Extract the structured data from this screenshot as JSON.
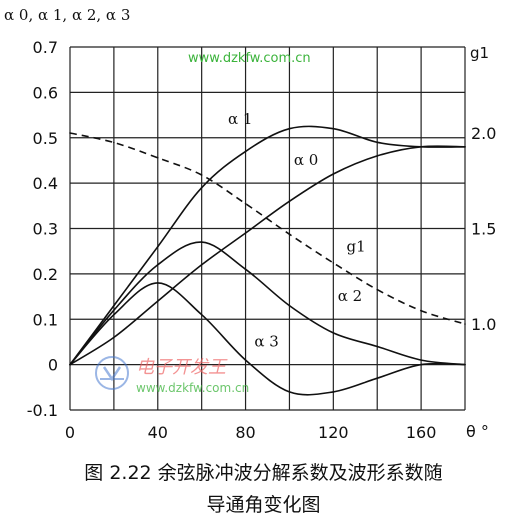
{
  "chart_data": {
    "type": "line",
    "title": "图 2.22 余弦脉冲波分解系数及波形系数随导通角变化图",
    "caption_line1": "图 2.22 余弦脉冲波分解系数及波形系数随",
    "caption_line2": "导通角变化图",
    "xlabel": "θ °",
    "ylabel_left": "α 0, α 1, α 2, α 3",
    "ylabel_right": "g1",
    "xlim": [
      0,
      180
    ],
    "ylim_left": [
      -0.1,
      0.7
    ],
    "ylim_right": [
      0.55,
      2.45
    ],
    "x_ticks": [
      "0",
      "40",
      "80",
      "120",
      "160"
    ],
    "x_tick_values": [
      0,
      40,
      80,
      120,
      160
    ],
    "y_ticks_left": [
      "-0.1",
      "0",
      "0.1",
      "0.2",
      "0.3",
      "0.4",
      "0.5",
      "0.6",
      "0.7"
    ],
    "y_tick_values_left": [
      -0.1,
      0,
      0.1,
      0.2,
      0.3,
      0.4,
      0.5,
      0.6,
      0.7
    ],
    "y_ticks_right": [
      "1.0",
      "1.5",
      "2.0"
    ],
    "y_tick_values_right": [
      1.0,
      1.5,
      2.0
    ],
    "grid": true,
    "series": [
      {
        "name": "α 1",
        "axis": "left",
        "style": "solid",
        "x": [
          0,
          20,
          40,
          60,
          80,
          100,
          120,
          140,
          160,
          180
        ],
        "values": [
          0,
          0.13,
          0.26,
          0.39,
          0.47,
          0.52,
          0.52,
          0.49,
          0.48,
          0.48
        ]
      },
      {
        "name": "α 0",
        "axis": "left",
        "style": "solid",
        "x": [
          0,
          20,
          40,
          60,
          80,
          100,
          120,
          140,
          160,
          180
        ],
        "values": [
          0,
          0.06,
          0.14,
          0.22,
          0.29,
          0.36,
          0.42,
          0.46,
          0.48,
          0.48
        ]
      },
      {
        "name": "α 2",
        "axis": "left",
        "style": "solid",
        "x": [
          0,
          20,
          40,
          60,
          80,
          100,
          120,
          140,
          160,
          180
        ],
        "values": [
          0,
          0.12,
          0.22,
          0.27,
          0.21,
          0.13,
          0.07,
          0.04,
          0.01,
          0
        ]
      },
      {
        "name": "α 3",
        "axis": "left",
        "style": "solid",
        "x": [
          0,
          20,
          40,
          60,
          80,
          100,
          120,
          140,
          160,
          180
        ],
        "values": [
          0,
          0.11,
          0.18,
          0.11,
          0.01,
          -0.06,
          -0.06,
          -0.03,
          0.0,
          0
        ]
      },
      {
        "name": "g1",
        "axis": "right",
        "style": "dashed",
        "x": [
          0,
          20,
          40,
          60,
          80,
          100,
          120,
          140,
          160,
          180
        ],
        "values": [
          2.0,
          1.95,
          1.87,
          1.78,
          1.63,
          1.47,
          1.32,
          1.18,
          1.07,
          1.0
        ]
      }
    ]
  },
  "watermark": {
    "top_text": "www.dzkfw.com.cn",
    "logo_text": "电子开发王",
    "bottom_text": "www.dzkfw.com.cn"
  }
}
